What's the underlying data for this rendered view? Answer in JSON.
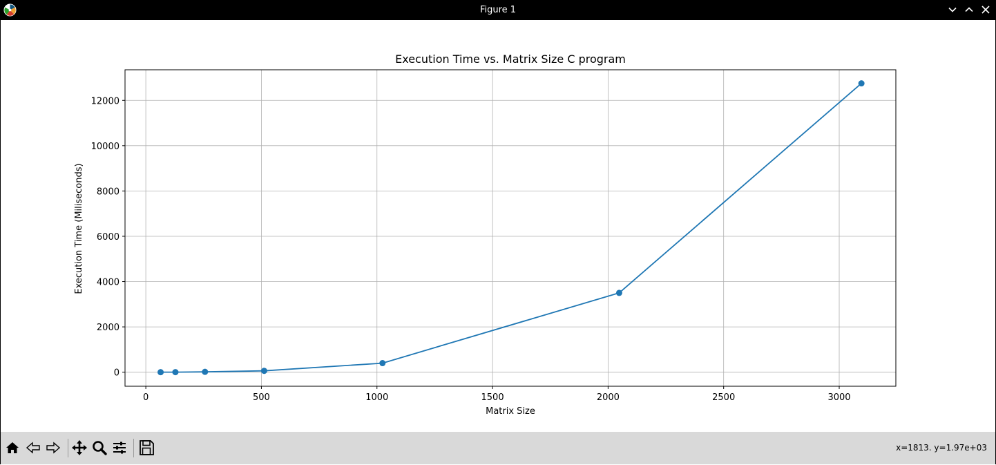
{
  "window": {
    "title": "Figure 1"
  },
  "icons": {
    "app": "matplotlib-icon",
    "minimize": "chevron-down-icon",
    "maximize": "chevron-up-icon",
    "close": "close-icon",
    "toolbar": [
      "home-icon",
      "back-icon",
      "forward-icon",
      "pan-icon",
      "zoom-icon",
      "configure-subplots-icon",
      "save-icon"
    ]
  },
  "toolbar": {
    "coords": "x=1813. y=1.97e+03"
  },
  "colors": {
    "series": "#1f77b4",
    "grid": "#b0b0b0",
    "titlebar": "#000000",
    "toolbar": "#d9d9d9"
  },
  "chart_data": {
    "type": "line",
    "title": "Execution Time vs. Matrix Size C program",
    "xlabel": "Matrix Size",
    "ylabel": "Execution Time (Miliseconds)",
    "xlim": [
      -90,
      3245
    ],
    "ylim": [
      -620,
      13350
    ],
    "xticks": [
      0,
      500,
      1000,
      1500,
      2000,
      2500,
      3000
    ],
    "yticks": [
      0,
      2000,
      4000,
      6000,
      8000,
      10000,
      12000
    ],
    "xtick_labels": [
      "0",
      "500",
      "1000",
      "1500",
      "2000",
      "2500",
      "3000"
    ],
    "ytick_labels": [
      "0",
      "2000",
      "4000",
      "6000",
      "8000",
      "10000",
      "12000"
    ],
    "grid": true,
    "marker": "circle",
    "series": [
      {
        "x": [
          64,
          128,
          256,
          512,
          1024,
          2048,
          3096
        ],
        "values": [
          1,
          3,
          15,
          60,
          400,
          3500,
          12750
        ]
      }
    ]
  }
}
